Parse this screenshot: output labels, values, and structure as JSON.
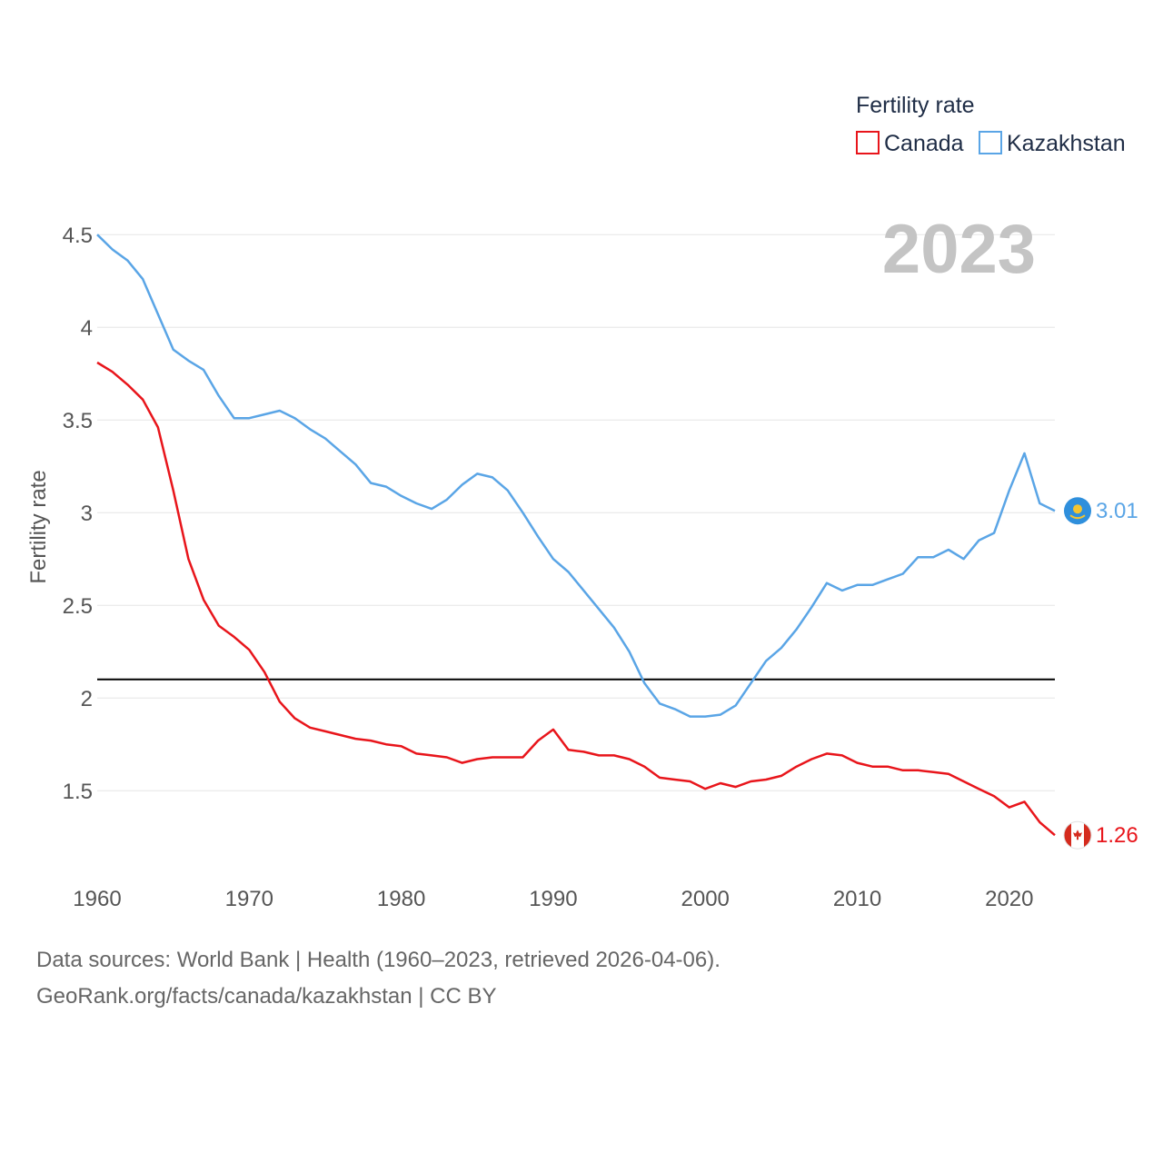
{
  "colors": {
    "canada": "#e8151b",
    "kazakhstan": "#5aa5e6",
    "reference": "#000000",
    "year": "#c4c4c4"
  },
  "chart_data": {
    "type": "line",
    "title": "Fertility rate",
    "ylabel": "Fertility rate",
    "xlabel": "",
    "year_label": "2023",
    "xlim": [
      1960,
      2023
    ],
    "ylim": [
      1.05,
      4.55
    ],
    "x_ticks": [
      1960,
      1970,
      1980,
      1990,
      2000,
      2010,
      2020
    ],
    "y_ticks": [
      1.5,
      2,
      2.5,
      3,
      3.5,
      4,
      4.5
    ],
    "y_tick_labels": [
      "1.5",
      "2",
      "2.5",
      "3",
      "3.5",
      "4",
      "4.5"
    ],
    "reference_line": 2.1,
    "legend": {
      "title": "Fertility rate",
      "entries": [
        "Canada",
        "Kazakhstan"
      ],
      "position": "top-right"
    },
    "x": [
      1960,
      1961,
      1962,
      1963,
      1964,
      1965,
      1966,
      1967,
      1968,
      1969,
      1970,
      1971,
      1972,
      1973,
      1974,
      1975,
      1976,
      1977,
      1978,
      1979,
      1980,
      1981,
      1982,
      1983,
      1984,
      1985,
      1986,
      1987,
      1988,
      1989,
      1990,
      1991,
      1992,
      1993,
      1994,
      1995,
      1996,
      1997,
      1998,
      1999,
      2000,
      2001,
      2002,
      2003,
      2004,
      2005,
      2006,
      2007,
      2008,
      2009,
      2010,
      2011,
      2012,
      2013,
      2014,
      2015,
      2016,
      2017,
      2018,
      2019,
      2020,
      2021,
      2022,
      2023
    ],
    "series": [
      {
        "name": "Canada",
        "color_key": "canada",
        "end_label": "1.26",
        "flag": "canada-flag",
        "values": [
          3.81,
          3.76,
          3.69,
          3.61,
          3.46,
          3.12,
          2.75,
          2.53,
          2.39,
          2.33,
          2.26,
          2.14,
          1.98,
          1.89,
          1.84,
          1.82,
          1.8,
          1.78,
          1.77,
          1.75,
          1.74,
          1.7,
          1.69,
          1.68,
          1.65,
          1.67,
          1.68,
          1.68,
          1.68,
          1.77,
          1.83,
          1.72,
          1.71,
          1.69,
          1.69,
          1.67,
          1.63,
          1.57,
          1.56,
          1.55,
          1.51,
          1.54,
          1.52,
          1.55,
          1.56,
          1.58,
          1.63,
          1.67,
          1.7,
          1.69,
          1.65,
          1.63,
          1.63,
          1.61,
          1.61,
          1.6,
          1.59,
          1.55,
          1.51,
          1.47,
          1.41,
          1.44,
          1.33,
          1.26
        ]
      },
      {
        "name": "Kazakhstan",
        "color_key": "kazakhstan",
        "end_label": "3.01",
        "flag": "kazakhstan-flag",
        "values": [
          4.5,
          4.42,
          4.36,
          4.26,
          4.07,
          3.88,
          3.82,
          3.77,
          3.63,
          3.51,
          3.51,
          3.53,
          3.55,
          3.51,
          3.45,
          3.4,
          3.33,
          3.26,
          3.16,
          3.14,
          3.09,
          3.05,
          3.02,
          3.07,
          3.15,
          3.21,
          3.19,
          3.12,
          3.0,
          2.87,
          2.75,
          2.68,
          2.58,
          2.48,
          2.38,
          2.25,
          2.08,
          1.97,
          1.94,
          1.9,
          1.9,
          1.91,
          1.96,
          2.08,
          2.2,
          2.27,
          2.37,
          2.49,
          2.62,
          2.58,
          2.61,
          2.61,
          2.64,
          2.67,
          2.76,
          2.76,
          2.8,
          2.75,
          2.85,
          2.89,
          3.12,
          3.32,
          3.05,
          3.01
        ]
      }
    ]
  },
  "footer": {
    "source": "Data sources: World Bank | Health (1960–2023, retrieved 2026-04-06).",
    "url": "GeoRank.org/facts/canada/kazakhstan | CC BY"
  }
}
